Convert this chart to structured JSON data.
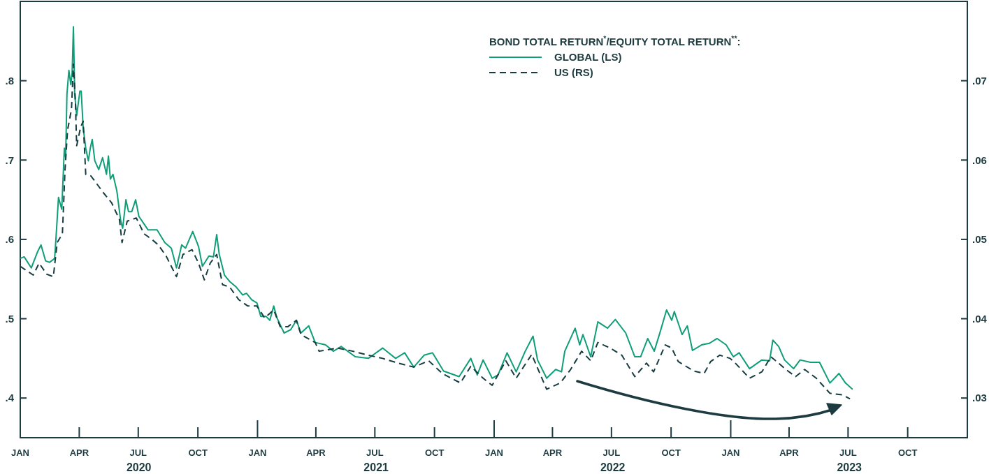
{
  "chart_data": {
    "type": "line",
    "legend_title": "BOND TOTAL RETURN$^{*}$/EQUITY TOTAL RETURN$^{**}$:",
    "legend": "top right",
    "xlim": [
      "2020-01-01",
      "2024-01-01"
    ],
    "xticks": [
      {
        "value": "2020-01-01",
        "label": "JAN"
      },
      {
        "value": "2020-04-01",
        "label": "APR"
      },
      {
        "value": "2020-07-01",
        "label": "JUL"
      },
      {
        "value": "2020-10-01",
        "label": "OCT"
      },
      {
        "value": "2021-01-01",
        "label": "JAN"
      },
      {
        "value": "2021-04-01",
        "label": "APR"
      },
      {
        "value": "2021-07-01",
        "label": "JUL"
      },
      {
        "value": "2021-10-01",
        "label": "OCT"
      },
      {
        "value": "2022-01-01",
        "label": "JAN"
      },
      {
        "value": "2022-04-01",
        "label": "APR"
      },
      {
        "value": "2022-07-01",
        "label": "JUL"
      },
      {
        "value": "2022-10-01",
        "label": "OCT"
      },
      {
        "value": "2023-01-01",
        "label": "JAN"
      },
      {
        "value": "2023-04-01",
        "label": "APR"
      },
      {
        "value": "2023-07-01",
        "label": "JUL"
      },
      {
        "value": "2023-10-01",
        "label": "OCT"
      }
    ],
    "annotations": [
      "2020",
      "2021",
      "2022",
      "2023"
    ],
    "ylim": [
      0.35,
      0.9
    ],
    "yticks": [
      {
        "value": 0.4,
        "label": ".4"
      },
      {
        "value": 0.5,
        "label": ".5"
      },
      {
        "value": 0.6,
        "label": ".6"
      },
      {
        "value": 0.7,
        "label": ".7"
      },
      {
        "value": 0.8,
        "label": ".8"
      }
    ],
    "y2lim": [
      0.025,
      0.08
    ],
    "y2ticks": [
      {
        "value": 0.03,
        "label": ".03"
      },
      {
        "value": 0.04,
        "label": ".04"
      },
      {
        "value": 0.05,
        "label": ".05"
      },
      {
        "value": 0.06,
        "label": ".06"
      },
      {
        "value": 0.07,
        "label": ".07"
      }
    ],
    "series": [
      {
        "name": "GLOBAL (LS)",
        "color": "#0f9e78",
        "line_style": "solid",
        "axis": "y",
        "x": [
          "2020-01-01",
          "2020-01-07",
          "2020-01-18",
          "2020-01-28",
          "2020-02-02",
          "2020-02-09",
          "2020-02-15",
          "2020-02-23",
          "2020-02-25",
          "2020-02-29",
          "2020-03-05",
          "2020-03-09",
          "2020-03-11",
          "2020-03-13",
          "2020-03-16",
          "2020-03-19",
          "2020-03-21",
          "2020-03-23",
          "2020-03-25",
          "2020-03-28",
          "2020-04-02",
          "2020-04-04",
          "2020-04-07",
          "2020-04-11",
          "2020-04-15",
          "2020-04-18",
          "2020-04-21",
          "2020-04-25",
          "2020-05-01",
          "2020-05-07",
          "2020-05-13",
          "2020-05-16",
          "2020-05-19",
          "2020-05-23",
          "2020-05-29",
          "2020-06-04",
          "2020-06-07",
          "2020-06-12",
          "2020-06-16",
          "2020-06-21",
          "2020-06-27",
          "2020-07-02",
          "2020-07-12",
          "2020-07-16",
          "2020-07-24",
          "2020-07-30",
          "2020-08-11",
          "2020-08-21",
          "2020-08-29",
          "2020-09-06",
          "2020-09-12",
          "2020-09-23",
          "2020-10-02",
          "2020-10-08",
          "2020-10-18",
          "2020-10-25",
          "2020-10-30",
          "2020-11-03",
          "2020-11-11",
          "2020-11-19",
          "2020-11-29",
          "2020-12-09",
          "2020-12-15",
          "2020-12-23",
          "2020-12-31",
          "2021-01-06",
          "2021-01-14",
          "2021-01-20",
          "2021-01-26",
          "2021-01-31",
          "2021-02-11",
          "2021-02-21",
          "2021-03-02",
          "2021-03-09",
          "2021-03-21",
          "2021-03-31",
          "2021-04-16",
          "2021-04-28",
          "2021-05-10",
          "2021-06-01",
          "2021-06-21",
          "2021-07-13",
          "2021-08-02",
          "2021-08-16",
          "2021-08-30",
          "2021-09-15",
          "2021-09-28",
          "2021-10-15",
          "2021-11-08",
          "2021-11-26",
          "2021-12-06",
          "2021-12-15",
          "2021-12-29",
          "2022-01-07",
          "2022-01-21",
          "2022-02-04",
          "2022-02-18",
          "2022-03-02",
          "2022-03-09",
          "2022-03-23",
          "2022-04-06",
          "2022-04-15",
          "2022-04-20",
          "2022-05-06",
          "2022-05-13",
          "2022-05-18",
          "2022-05-30",
          "2022-06-10",
          "2022-06-25",
          "2022-07-07",
          "2022-07-23",
          "2022-08-06",
          "2022-08-15",
          "2022-08-26",
          "2022-09-05",
          "2022-09-14",
          "2022-09-24",
          "2022-10-02",
          "2022-10-06",
          "2022-10-18",
          "2022-10-26",
          "2022-11-03",
          "2022-11-17",
          "2022-11-29",
          "2022-12-11",
          "2022-12-25",
          "2023-01-05",
          "2023-01-14",
          "2023-01-30",
          "2023-02-18",
          "2023-03-02",
          "2023-03-07",
          "2023-03-16",
          "2023-03-25",
          "2023-04-08",
          "2023-04-18",
          "2023-05-04",
          "2023-05-18",
          "2023-06-03",
          "2023-06-17",
          "2023-06-27",
          "2023-07-08"
        ],
        "values": [
          0.576,
          0.578,
          0.564,
          0.585,
          0.593,
          0.573,
          0.571,
          0.576,
          0.6,
          0.653,
          0.638,
          0.715,
          0.703,
          0.783,
          0.813,
          0.795,
          0.81,
          0.868,
          0.783,
          0.756,
          0.787,
          0.787,
          0.741,
          0.715,
          0.699,
          0.715,
          0.726,
          0.699,
          0.688,
          0.703,
          0.682,
          0.705,
          0.676,
          0.682,
          0.661,
          0.623,
          0.614,
          0.65,
          0.635,
          0.635,
          0.65,
          0.629,
          0.617,
          0.612,
          0.612,
          0.612,
          0.596,
          0.589,
          0.564,
          0.593,
          0.589,
          0.61,
          0.591,
          0.566,
          0.579,
          0.578,
          0.606,
          0.581,
          0.555,
          0.547,
          0.54,
          0.53,
          0.532,
          0.524,
          0.52,
          0.503,
          0.503,
          0.498,
          0.516,
          0.501,
          0.482,
          0.486,
          0.498,
          0.482,
          0.491,
          0.47,
          0.467,
          0.459,
          0.465,
          0.452,
          0.45,
          0.463,
          0.45,
          0.457,
          0.439,
          0.454,
          0.457,
          0.434,
          0.427,
          0.45,
          0.429,
          0.448,
          0.425,
          0.429,
          0.457,
          0.433,
          0.459,
          0.478,
          0.448,
          0.425,
          0.436,
          0.433,
          0.459,
          0.488,
          0.467,
          0.48,
          0.452,
          0.496,
          0.488,
          0.499,
          0.482,
          0.452,
          0.452,
          0.475,
          0.459,
          0.483,
          0.511,
          0.498,
          0.509,
          0.48,
          0.491,
          0.46,
          0.467,
          0.469,
          0.475,
          0.467,
          0.452,
          0.457,
          0.437,
          0.448,
          0.447,
          0.473,
          0.465,
          0.448,
          0.437,
          0.448,
          0.445,
          0.445,
          0.419,
          0.431,
          0.419,
          0.411
        ]
      },
      {
        "name": "US (RS)",
        "color": "#163c42",
        "line_style": "dashed",
        "axis": "y2",
        "x": [
          "2020-01-01",
          "2020-01-21",
          "2020-01-30",
          "2020-02-11",
          "2020-02-21",
          "2020-02-27",
          "2020-03-06",
          "2020-03-10",
          "2020-03-14",
          "2020-03-20",
          "2020-03-23",
          "2020-03-26",
          "2020-03-28",
          "2020-04-03",
          "2020-04-07",
          "2020-04-11",
          "2020-04-19",
          "2020-04-29",
          "2020-05-09",
          "2020-05-21",
          "2020-06-02",
          "2020-06-06",
          "2020-06-14",
          "2020-06-28",
          "2020-07-10",
          "2020-07-22",
          "2020-08-01",
          "2020-08-13",
          "2020-08-29",
          "2020-09-08",
          "2020-09-22",
          "2020-10-02",
          "2020-10-11",
          "2020-10-20",
          "2020-10-30",
          "2020-11-08",
          "2020-11-19",
          "2020-12-03",
          "2020-12-17",
          "2020-12-31",
          "2021-01-12",
          "2021-01-26",
          "2021-02-05",
          "2021-02-17",
          "2021-03-02",
          "2021-03-09",
          "2021-03-31",
          "2021-04-06",
          "2021-05-04",
          "2021-05-28",
          "2021-06-21",
          "2021-07-13",
          "2021-08-06",
          "2021-08-30",
          "2021-09-22",
          "2021-10-13",
          "2021-11-10",
          "2021-11-26",
          "2021-12-15",
          "2021-12-29",
          "2022-01-19",
          "2022-02-04",
          "2022-02-28",
          "2022-03-23",
          "2022-04-13",
          "2022-04-29",
          "2022-05-16",
          "2022-05-30",
          "2022-06-10",
          "2022-06-29",
          "2022-07-17",
          "2022-08-06",
          "2022-08-24",
          "2022-09-04",
          "2022-09-22",
          "2022-10-02",
          "2022-10-12",
          "2022-11-05",
          "2022-11-21",
          "2022-12-01",
          "2022-12-15",
          "2022-12-31",
          "2023-01-08",
          "2023-01-30",
          "2023-02-18",
          "2023-03-04",
          "2023-03-13",
          "2023-03-27",
          "2023-04-11",
          "2023-04-25",
          "2023-05-13",
          "2023-06-03",
          "2023-06-22",
          "2023-07-04"
        ],
        "values": [
          0.0466,
          0.0455,
          0.047,
          0.0456,
          0.0453,
          0.0496,
          0.0507,
          0.0587,
          0.0638,
          0.0664,
          0.0721,
          0.0675,
          0.0618,
          0.0641,
          0.0649,
          0.0582,
          0.058,
          0.0569,
          0.0558,
          0.0546,
          0.0525,
          0.0496,
          0.0523,
          0.0527,
          0.0507,
          0.05,
          0.0493,
          0.0479,
          0.0453,
          0.0481,
          0.0487,
          0.047,
          0.0449,
          0.047,
          0.0481,
          0.0443,
          0.044,
          0.0424,
          0.0416,
          0.0416,
          0.0401,
          0.0411,
          0.039,
          0.039,
          0.0398,
          0.038,
          0.037,
          0.0359,
          0.0363,
          0.0359,
          0.0354,
          0.035,
          0.0344,
          0.0339,
          0.0347,
          0.0331,
          0.0319,
          0.034,
          0.0325,
          0.0316,
          0.0347,
          0.0325,
          0.0355,
          0.0311,
          0.0319,
          0.0336,
          0.0359,
          0.0347,
          0.037,
          0.0363,
          0.0354,
          0.0327,
          0.0344,
          0.0333,
          0.0367,
          0.0363,
          0.0346,
          0.0334,
          0.0331,
          0.0346,
          0.0354,
          0.035,
          0.0344,
          0.0325,
          0.0333,
          0.0352,
          0.0346,
          0.0336,
          0.0327,
          0.0336,
          0.0325,
          0.0306,
          0.0304,
          0.0299
        ]
      }
    ]
  }
}
